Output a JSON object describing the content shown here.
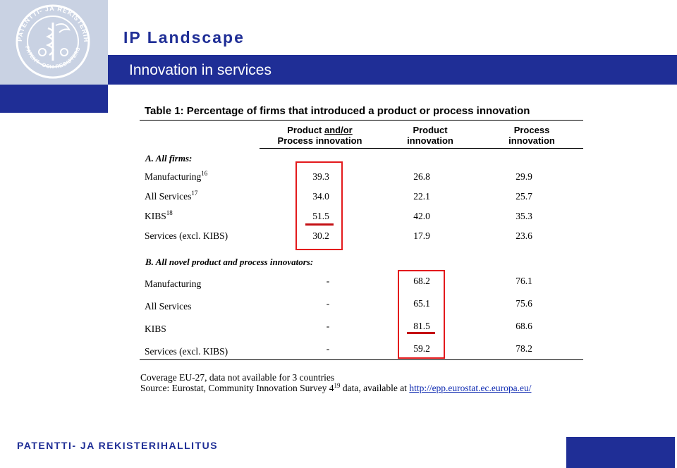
{
  "header": {
    "title": "IP Landscape",
    "subtitle": "Innovation in services",
    "seal_text": "PATENTTI- JA REKISTERIHALLITUS · PATENT- OCH REGISTERSTYRELSEN"
  },
  "footer": {
    "brand": "PATENTTI- JA REKISTERIHALLITUS"
  },
  "colors": {
    "brand_blue": "#1f2e96",
    "logo_bg": "#c9d2e3",
    "highlight_red": "#e3191c"
  },
  "table": {
    "caption": "Table 1: Percentage of firms that introduced a product or process innovation",
    "col1_line1_pre": "Product ",
    "col1_line1_ul": "and/or",
    "col1_line2": "Process innovation",
    "col2_line1": "Product",
    "col2_line2": "innovation",
    "col3_line1": "Process",
    "col3_line2": "innovation",
    "section_a": "A. All firms:",
    "section_b": "B. All novel product and process innovators:",
    "rows_a": [
      {
        "label": "Manufacturing",
        "sup": "16",
        "c1": "39.3",
        "c2": "26.8",
        "c3": "29.9"
      },
      {
        "label": "All Services",
        "sup": "17",
        "c1": "34.0",
        "c2": "22.1",
        "c3": "25.7"
      },
      {
        "label": "KIBS",
        "sup": "18",
        "c1": "51.5",
        "c2": "42.0",
        "c3": "35.3"
      },
      {
        "label": "Services (excl. KIBS)",
        "sup": "",
        "c1": "30.2",
        "c2": "17.9",
        "c3": "23.6"
      }
    ],
    "rows_b": [
      {
        "label": "Manufacturing",
        "c1": "-",
        "c2": "68.2",
        "c3": "76.1"
      },
      {
        "label": "All Services",
        "c1": "-",
        "c2": "65.1",
        "c3": "75.6"
      },
      {
        "label": "KIBS",
        "c1": "-",
        "c2": "81.5",
        "c3": "68.6"
      },
      {
        "label": "Services (excl. KIBS)",
        "c1": "-",
        "c2": "59.2",
        "c3": "78.2"
      }
    ],
    "note_coverage": "Coverage EU-27, data not available for 3 countries",
    "note_source_pre": "Source: Eurostat, Community Innovation Survey 4",
    "note_source_sup": "19",
    "note_source_mid": " data, available at ",
    "note_url": "http://epp.eurostat.ec.europa.eu/"
  }
}
